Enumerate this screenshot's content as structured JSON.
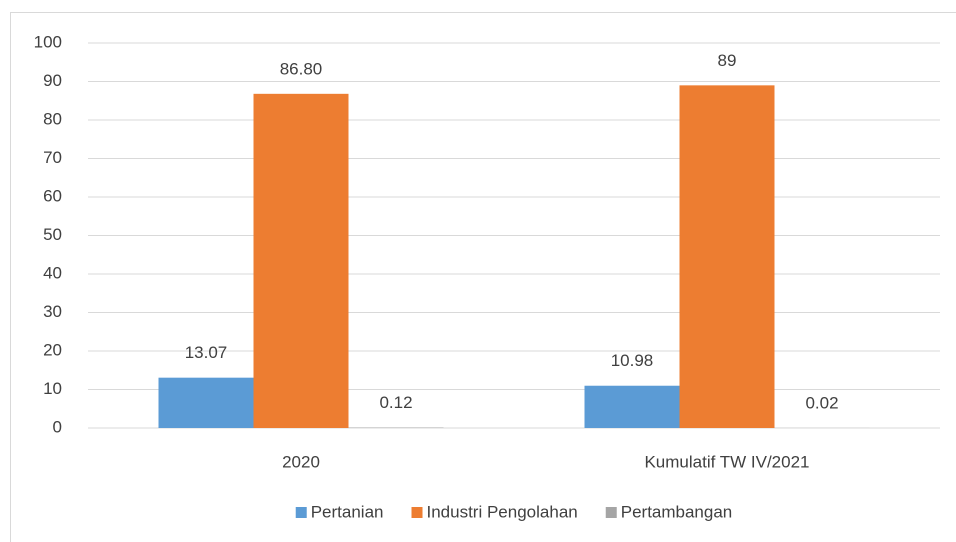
{
  "chart_data": {
    "type": "bar",
    "categories": [
      "2020",
      "Kumulatif TW IV/2021"
    ],
    "series": [
      {
        "name": "Pertanian",
        "color": "#5b9bd5",
        "values": [
          13.07,
          10.98
        ],
        "value_labels": [
          "13.07",
          "10.98"
        ]
      },
      {
        "name": "Industri Pengolahan",
        "color": "#ed7d31",
        "values": [
          86.8,
          89
        ],
        "value_labels": [
          "86.80",
          "89"
        ]
      },
      {
        "name": "Pertambangan",
        "color": "#a5a5a5",
        "values": [
          0.12,
          0.02
        ],
        "value_labels": [
          "0.12",
          "0.02"
        ]
      }
    ],
    "ylim": [
      0,
      100
    ],
    "yticks": [
      0,
      10,
      20,
      30,
      40,
      50,
      60,
      70,
      80,
      90,
      100
    ],
    "grid": true,
    "legend": "bottom"
  }
}
